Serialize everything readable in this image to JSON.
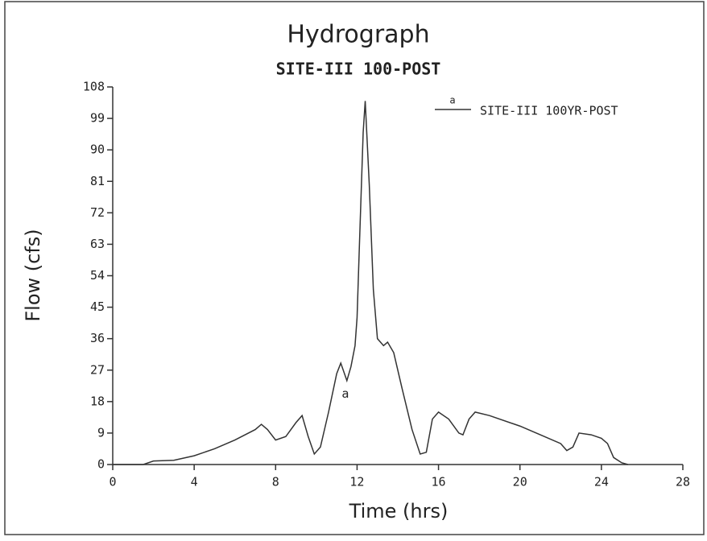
{
  "chart_data": {
    "type": "line",
    "title": "Hydrograph",
    "subtitle": "SITE-III 100-POST",
    "x_label": "Time (hrs)",
    "y_label": "Flow (cfs)",
    "x": [
      0,
      1.5,
      2,
      3,
      4,
      5,
      6,
      7,
      7.3,
      7.6,
      8,
      8.5,
      9,
      9.3,
      9.6,
      9.9,
      10.2,
      10.6,
      11,
      11.2,
      11.5,
      11.7,
      11.9,
      12,
      12.1,
      12.3,
      12.4,
      12.6,
      12.8,
      13,
      13.3,
      13.5,
      13.8,
      14.2,
      14.7,
      15.1,
      15.4,
      15.7,
      16,
      16.5,
      17,
      17.2,
      17.5,
      17.8,
      18.5,
      20,
      21,
      22,
      22.3,
      22.6,
      22.9,
      23.5,
      24,
      24.3,
      24.6,
      25,
      25.3
    ],
    "series": [
      {
        "name": "SITE-III 100YR-POST",
        "marker": "a",
        "color": "#333333",
        "values": [
          0,
          0,
          1,
          1.2,
          2.5,
          4.5,
          7,
          10,
          11.5,
          10,
          7,
          8,
          12,
          14,
          8,
          3,
          5,
          15,
          26,
          29,
          24,
          28,
          34,
          42,
          60,
          95,
          104,
          80,
          50,
          36,
          34,
          35,
          32,
          22,
          10,
          3,
          3.5,
          13,
          15,
          13,
          9,
          8.5,
          13,
          15,
          14,
          11,
          8.5,
          6,
          4,
          5,
          9,
          8.5,
          7.5,
          6,
          2,
          0.5,
          0
        ]
      }
    ],
    "xlim": [
      0,
      28
    ],
    "xticks": [
      0,
      4,
      8,
      12,
      16,
      20,
      24,
      28
    ],
    "ylim": [
      0,
      108
    ],
    "yticks": [
      0,
      9,
      18,
      27,
      36,
      45,
      54,
      63,
      72,
      81,
      90,
      99,
      108
    ]
  }
}
